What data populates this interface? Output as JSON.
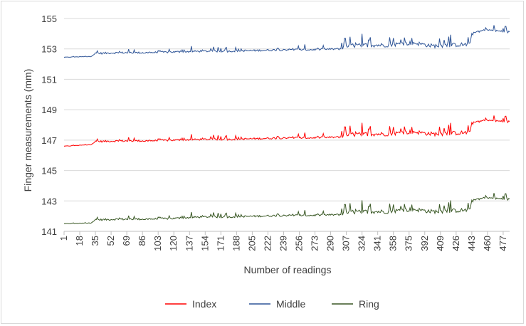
{
  "chart_data": {
    "type": "line",
    "title": "",
    "xlabel": "Number of readings",
    "ylabel": "Finger measurements (mm)",
    "ylim": [
      141,
      155
    ],
    "yticks": [
      141,
      143,
      145,
      147,
      149,
      151,
      153,
      155
    ],
    "xlim": [
      1,
      484
    ],
    "xticks": [
      1,
      18,
      35,
      52,
      69,
      86,
      103,
      120,
      137,
      154,
      171,
      188,
      205,
      222,
      239,
      256,
      273,
      290,
      307,
      324,
      341,
      358,
      375,
      392,
      409,
      426,
      443,
      460,
      477
    ],
    "grid": true,
    "legend_position": "bottom",
    "colors": {
      "Index": "#ff0000",
      "Middle": "#2f5597",
      "Ring": "#385723"
    },
    "series": [
      {
        "name": "Index",
        "color": "#ff0000",
        "x": [
          1,
          30,
          35,
          60,
          90,
          120,
          150,
          180,
          210,
          240,
          270,
          300,
          310,
          330,
          350,
          380,
          400,
          420,
          440,
          445,
          460,
          484
        ],
        "values": [
          146.6,
          146.7,
          146.9,
          146.95,
          146.95,
          147.0,
          147.05,
          147.05,
          147.1,
          147.15,
          147.15,
          147.2,
          147.35,
          147.4,
          147.4,
          147.55,
          147.4,
          147.45,
          147.5,
          148.2,
          148.3,
          148.2
        ]
      },
      {
        "name": "Middle",
        "color": "#2f5597",
        "x": [
          1,
          30,
          35,
          60,
          90,
          120,
          150,
          180,
          210,
          240,
          270,
          300,
          310,
          330,
          350,
          380,
          400,
          420,
          440,
          445,
          460,
          484
        ],
        "values": [
          152.45,
          152.5,
          152.7,
          152.75,
          152.75,
          152.8,
          152.85,
          152.85,
          152.9,
          152.95,
          152.95,
          153.0,
          153.2,
          153.25,
          153.25,
          153.4,
          153.2,
          153.25,
          153.3,
          154.1,
          154.25,
          154.1
        ]
      },
      {
        "name": "Ring",
        "color": "#385723",
        "x": [
          1,
          30,
          35,
          60,
          90,
          120,
          150,
          180,
          210,
          240,
          270,
          300,
          310,
          330,
          350,
          380,
          400,
          420,
          440,
          445,
          460,
          484
        ],
        "values": [
          141.5,
          141.55,
          141.75,
          141.8,
          141.8,
          141.85,
          141.95,
          141.95,
          142.0,
          142.05,
          142.05,
          142.1,
          142.25,
          142.3,
          142.3,
          142.45,
          142.3,
          142.35,
          142.4,
          143.1,
          143.2,
          143.1
        ]
      }
    ]
  }
}
